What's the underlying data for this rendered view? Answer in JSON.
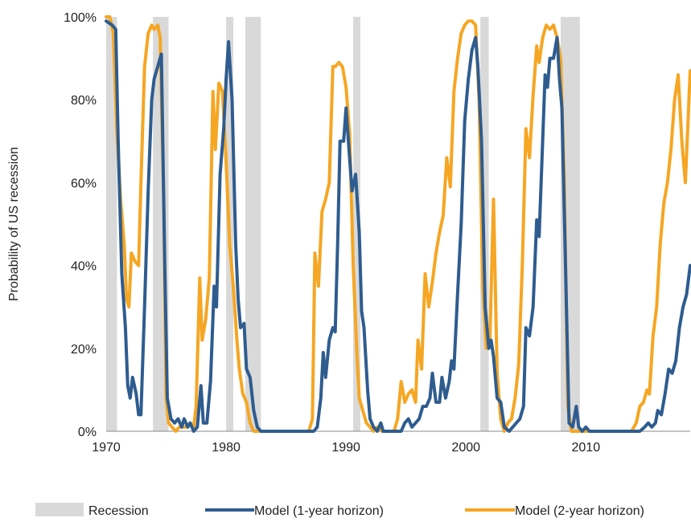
{
  "chart_data": {
    "type": "line",
    "title": "",
    "xlabel": "",
    "ylabel": "Probability of US recession",
    "xlim": [
      1970,
      2018.7
    ],
    "ylim": [
      0,
      100
    ],
    "x_ticks": [
      1970,
      1980,
      1990,
      2000,
      2010
    ],
    "x_tick_labels": [
      "1970",
      "1980",
      "1990",
      "2000",
      "2010"
    ],
    "y_ticks": [
      0,
      20,
      40,
      60,
      80,
      100
    ],
    "y_tick_labels": [
      "0%",
      "20%",
      "40%",
      "60%",
      "80%",
      "100%"
    ],
    "grid": false,
    "legend_position": "bottom",
    "recession_label": "Recession",
    "recession_color": "#d9d9d9",
    "recessions": [
      [
        1970.0,
        1970.9
      ],
      [
        1973.9,
        1975.2
      ],
      [
        1980.0,
        1980.6
      ],
      [
        1981.6,
        1982.9
      ],
      [
        1990.6,
        1991.2
      ],
      [
        2001.2,
        2001.9
      ],
      [
        2007.9,
        2009.5
      ]
    ],
    "series": [
      {
        "name": "Model (1-year horizon)",
        "color": "#2e5c8f",
        "points": [
          [
            1970.0,
            99
          ],
          [
            1970.5,
            98
          ],
          [
            1970.8,
            97
          ],
          [
            1971.0,
            70
          ],
          [
            1971.3,
            38
          ],
          [
            1971.6,
            25
          ],
          [
            1971.8,
            11
          ],
          [
            1972.0,
            8
          ],
          [
            1972.2,
            13
          ],
          [
            1972.5,
            9
          ],
          [
            1972.7,
            4
          ],
          [
            1972.9,
            4
          ],
          [
            1973.2,
            30
          ],
          [
            1973.5,
            58
          ],
          [
            1973.8,
            80
          ],
          [
            1974.0,
            85
          ],
          [
            1974.3,
            88
          ],
          [
            1974.6,
            91
          ],
          [
            1974.9,
            38
          ],
          [
            1975.1,
            8
          ],
          [
            1975.4,
            3
          ],
          [
            1975.7,
            2
          ],
          [
            1976.0,
            3
          ],
          [
            1976.3,
            1
          ],
          [
            1976.5,
            3
          ],
          [
            1976.8,
            1
          ],
          [
            1977.0,
            2
          ],
          [
            1977.3,
            0
          ],
          [
            1977.6,
            1
          ],
          [
            1977.9,
            11
          ],
          [
            1978.1,
            2
          ],
          [
            1978.4,
            2
          ],
          [
            1978.7,
            12
          ],
          [
            1979.0,
            35
          ],
          [
            1979.2,
            30
          ],
          [
            1979.5,
            62
          ],
          [
            1979.8,
            73
          ],
          [
            1980.0,
            85
          ],
          [
            1980.2,
            94
          ],
          [
            1980.5,
            80
          ],
          [
            1980.8,
            45
          ],
          [
            1981.0,
            32
          ],
          [
            1981.2,
            25
          ],
          [
            1981.5,
            26
          ],
          [
            1981.7,
            15
          ],
          [
            1982.0,
            13
          ],
          [
            1982.3,
            5
          ],
          [
            1982.6,
            1
          ],
          [
            1982.9,
            0
          ],
          [
            1983.5,
            0
          ],
          [
            1984.5,
            0
          ],
          [
            1985.5,
            0
          ],
          [
            1986.5,
            0
          ],
          [
            1987.3,
            0
          ],
          [
            1987.6,
            1
          ],
          [
            1987.9,
            8
          ],
          [
            1988.1,
            19
          ],
          [
            1988.3,
            13
          ],
          [
            1988.6,
            22
          ],
          [
            1988.9,
            25
          ],
          [
            1989.1,
            24
          ],
          [
            1989.3,
            45
          ],
          [
            1989.5,
            70
          ],
          [
            1989.8,
            70
          ],
          [
            1990.0,
            78
          ],
          [
            1990.2,
            70
          ],
          [
            1990.5,
            58
          ],
          [
            1990.8,
            62
          ],
          [
            1991.1,
            48
          ],
          [
            1991.3,
            29
          ],
          [
            1991.5,
            25
          ],
          [
            1991.8,
            10
          ],
          [
            1992.0,
            3
          ],
          [
            1992.3,
            1
          ],
          [
            1992.6,
            0
          ],
          [
            1992.9,
            2
          ],
          [
            1993.1,
            0
          ],
          [
            1993.5,
            0
          ],
          [
            1994.0,
            0
          ],
          [
            1994.6,
            0
          ],
          [
            1994.9,
            2
          ],
          [
            1995.2,
            3
          ],
          [
            1995.5,
            1
          ],
          [
            1995.8,
            2
          ],
          [
            1996.1,
            3
          ],
          [
            1996.4,
            6
          ],
          [
            1996.7,
            6
          ],
          [
            1997.0,
            8
          ],
          [
            1997.2,
            14
          ],
          [
            1997.5,
            7
          ],
          [
            1997.8,
            7
          ],
          [
            1998.0,
            13
          ],
          [
            1998.3,
            8
          ],
          [
            1998.6,
            12
          ],
          [
            1998.8,
            17
          ],
          [
            1999.0,
            15
          ],
          [
            1999.3,
            33
          ],
          [
            1999.6,
            50
          ],
          [
            1999.9,
            75
          ],
          [
            2000.2,
            85
          ],
          [
            2000.5,
            92
          ],
          [
            2000.8,
            95
          ],
          [
            2001.0,
            88
          ],
          [
            2001.3,
            70
          ],
          [
            2001.6,
            30
          ],
          [
            2001.9,
            20
          ],
          [
            2002.1,
            22
          ],
          [
            2002.3,
            18
          ],
          [
            2002.6,
            8
          ],
          [
            2002.9,
            7
          ],
          [
            2003.2,
            1
          ],
          [
            2003.6,
            0
          ],
          [
            2003.9,
            1
          ],
          [
            2004.2,
            2
          ],
          [
            2004.5,
            3
          ],
          [
            2004.8,
            6
          ],
          [
            2005.0,
            25
          ],
          [
            2005.3,
            23
          ],
          [
            2005.6,
            30
          ],
          [
            2005.9,
            51
          ],
          [
            2006.1,
            47
          ],
          [
            2006.4,
            70
          ],
          [
            2006.6,
            86
          ],
          [
            2006.8,
            83
          ],
          [
            2007.0,
            90
          ],
          [
            2007.3,
            90
          ],
          [
            2007.6,
            95
          ],
          [
            2007.8,
            85
          ],
          [
            2008.0,
            78
          ],
          [
            2008.3,
            40
          ],
          [
            2008.6,
            2
          ],
          [
            2008.9,
            1
          ],
          [
            2009.2,
            6
          ],
          [
            2009.4,
            1
          ],
          [
            2009.7,
            0
          ],
          [
            2010.0,
            1
          ],
          [
            2010.3,
            0
          ],
          [
            2011.0,
            0
          ],
          [
            2012.0,
            0
          ],
          [
            2013.0,
            0
          ],
          [
            2014.0,
            0
          ],
          [
            2014.5,
            0
          ],
          [
            2014.9,
            1
          ],
          [
            2015.2,
            2
          ],
          [
            2015.5,
            1
          ],
          [
            2015.8,
            2
          ],
          [
            2016.0,
            5
          ],
          [
            2016.3,
            4
          ],
          [
            2016.6,
            9
          ],
          [
            2016.9,
            15
          ],
          [
            2017.2,
            14
          ],
          [
            2017.5,
            17
          ],
          [
            2017.8,
            25
          ],
          [
            2018.1,
            30
          ],
          [
            2018.4,
            33
          ],
          [
            2018.7,
            40
          ]
        ]
      },
      {
        "name": "Model (2-year horizon)",
        "color": "#f5a623",
        "points": [
          [
            1970.0,
            100
          ],
          [
            1970.3,
            100
          ],
          [
            1970.6,
            96
          ],
          [
            1970.9,
            72
          ],
          [
            1971.2,
            56
          ],
          [
            1971.5,
            45
          ],
          [
            1971.7,
            32
          ],
          [
            1971.9,
            30
          ],
          [
            1972.1,
            43
          ],
          [
            1972.4,
            41
          ],
          [
            1972.7,
            40
          ],
          [
            1972.9,
            60
          ],
          [
            1973.2,
            88
          ],
          [
            1973.5,
            96
          ],
          [
            1973.8,
            98
          ],
          [
            1974.0,
            97
          ],
          [
            1974.3,
            98
          ],
          [
            1974.5,
            95
          ],
          [
            1974.8,
            55
          ],
          [
            1975.0,
            8
          ],
          [
            1975.2,
            2
          ],
          [
            1975.5,
            1
          ],
          [
            1975.8,
            0
          ],
          [
            1976.1,
            1
          ],
          [
            1976.4,
            1
          ],
          [
            1976.7,
            1
          ],
          [
            1977.0,
            2
          ],
          [
            1977.3,
            1
          ],
          [
            1977.5,
            6
          ],
          [
            1977.8,
            37
          ],
          [
            1978.0,
            22
          ],
          [
            1978.3,
            27
          ],
          [
            1978.6,
            37
          ],
          [
            1978.9,
            82
          ],
          [
            1979.1,
            68
          ],
          [
            1979.4,
            84
          ],
          [
            1979.7,
            82
          ],
          [
            1980.0,
            65
          ],
          [
            1980.3,
            45
          ],
          [
            1980.6,
            35
          ],
          [
            1980.9,
            22
          ],
          [
            1981.1,
            15
          ],
          [
            1981.4,
            9
          ],
          [
            1981.7,
            7
          ],
          [
            1982.0,
            2
          ],
          [
            1982.3,
            0
          ],
          [
            1983.0,
            0
          ],
          [
            1984.0,
            0
          ],
          [
            1985.0,
            0
          ],
          [
            1986.0,
            0
          ],
          [
            1986.9,
            0
          ],
          [
            1987.2,
            3
          ],
          [
            1987.4,
            43
          ],
          [
            1987.7,
            35
          ],
          [
            1988.0,
            53
          ],
          [
            1988.3,
            56
          ],
          [
            1988.6,
            60
          ],
          [
            1988.9,
            88
          ],
          [
            1989.1,
            88
          ],
          [
            1989.4,
            89
          ],
          [
            1989.7,
            88
          ],
          [
            1990.0,
            83
          ],
          [
            1990.3,
            72
          ],
          [
            1990.6,
            40
          ],
          [
            1990.9,
            19
          ],
          [
            1991.1,
            8
          ],
          [
            1991.4,
            5
          ],
          [
            1991.7,
            2
          ],
          [
            1992.0,
            1
          ],
          [
            1992.3,
            0
          ],
          [
            1992.6,
            1
          ],
          [
            1993.0,
            0
          ],
          [
            1994.0,
            0
          ],
          [
            1994.3,
            3
          ],
          [
            1994.6,
            12
          ],
          [
            1994.9,
            7
          ],
          [
            1995.2,
            9
          ],
          [
            1995.5,
            10
          ],
          [
            1995.8,
            7
          ],
          [
            1996.0,
            22
          ],
          [
            1996.3,
            15
          ],
          [
            1996.6,
            38
          ],
          [
            1996.9,
            30
          ],
          [
            1997.2,
            36
          ],
          [
            1997.5,
            43
          ],
          [
            1997.8,
            48
          ],
          [
            1998.1,
            52
          ],
          [
            1998.4,
            66
          ],
          [
            1998.7,
            59
          ],
          [
            1999.0,
            82
          ],
          [
            1999.3,
            90
          ],
          [
            1999.6,
            96
          ],
          [
            1999.9,
            98
          ],
          [
            2000.2,
            99
          ],
          [
            2000.5,
            99
          ],
          [
            2000.8,
            98
          ],
          [
            2001.1,
            80
          ],
          [
            2001.4,
            35
          ],
          [
            2001.7,
            20
          ],
          [
            2002.0,
            22
          ],
          [
            2002.3,
            56
          ],
          [
            2002.6,
            14
          ],
          [
            2002.9,
            3
          ],
          [
            2003.2,
            0
          ],
          [
            2003.5,
            2
          ],
          [
            2003.8,
            3
          ],
          [
            2004.1,
            8
          ],
          [
            2004.4,
            16
          ],
          [
            2004.7,
            40
          ],
          [
            2005.0,
            73
          ],
          [
            2005.3,
            66
          ],
          [
            2005.6,
            81
          ],
          [
            2005.9,
            93
          ],
          [
            2006.1,
            89
          ],
          [
            2006.4,
            95
          ],
          [
            2006.7,
            98
          ],
          [
            2007.0,
            97
          ],
          [
            2007.3,
            98
          ],
          [
            2007.6,
            95
          ],
          [
            2007.9,
            90
          ],
          [
            2008.2,
            60
          ],
          [
            2008.5,
            6
          ],
          [
            2008.8,
            0
          ],
          [
            2009.2,
            0
          ],
          [
            2010.0,
            0
          ],
          [
            2011.0,
            0
          ],
          [
            2012.0,
            0
          ],
          [
            2013.0,
            0
          ],
          [
            2013.8,
            0
          ],
          [
            2014.2,
            2
          ],
          [
            2014.5,
            6
          ],
          [
            2014.8,
            7
          ],
          [
            2015.1,
            10
          ],
          [
            2015.3,
            9
          ],
          [
            2015.6,
            23
          ],
          [
            2015.9,
            30
          ],
          [
            2016.2,
            45
          ],
          [
            2016.5,
            55
          ],
          [
            2016.8,
            60
          ],
          [
            2017.1,
            68
          ],
          [
            2017.4,
            80
          ],
          [
            2017.7,
            86
          ],
          [
            2018.0,
            70
          ],
          [
            2018.3,
            60
          ],
          [
            2018.7,
            87
          ]
        ]
      }
    ]
  }
}
